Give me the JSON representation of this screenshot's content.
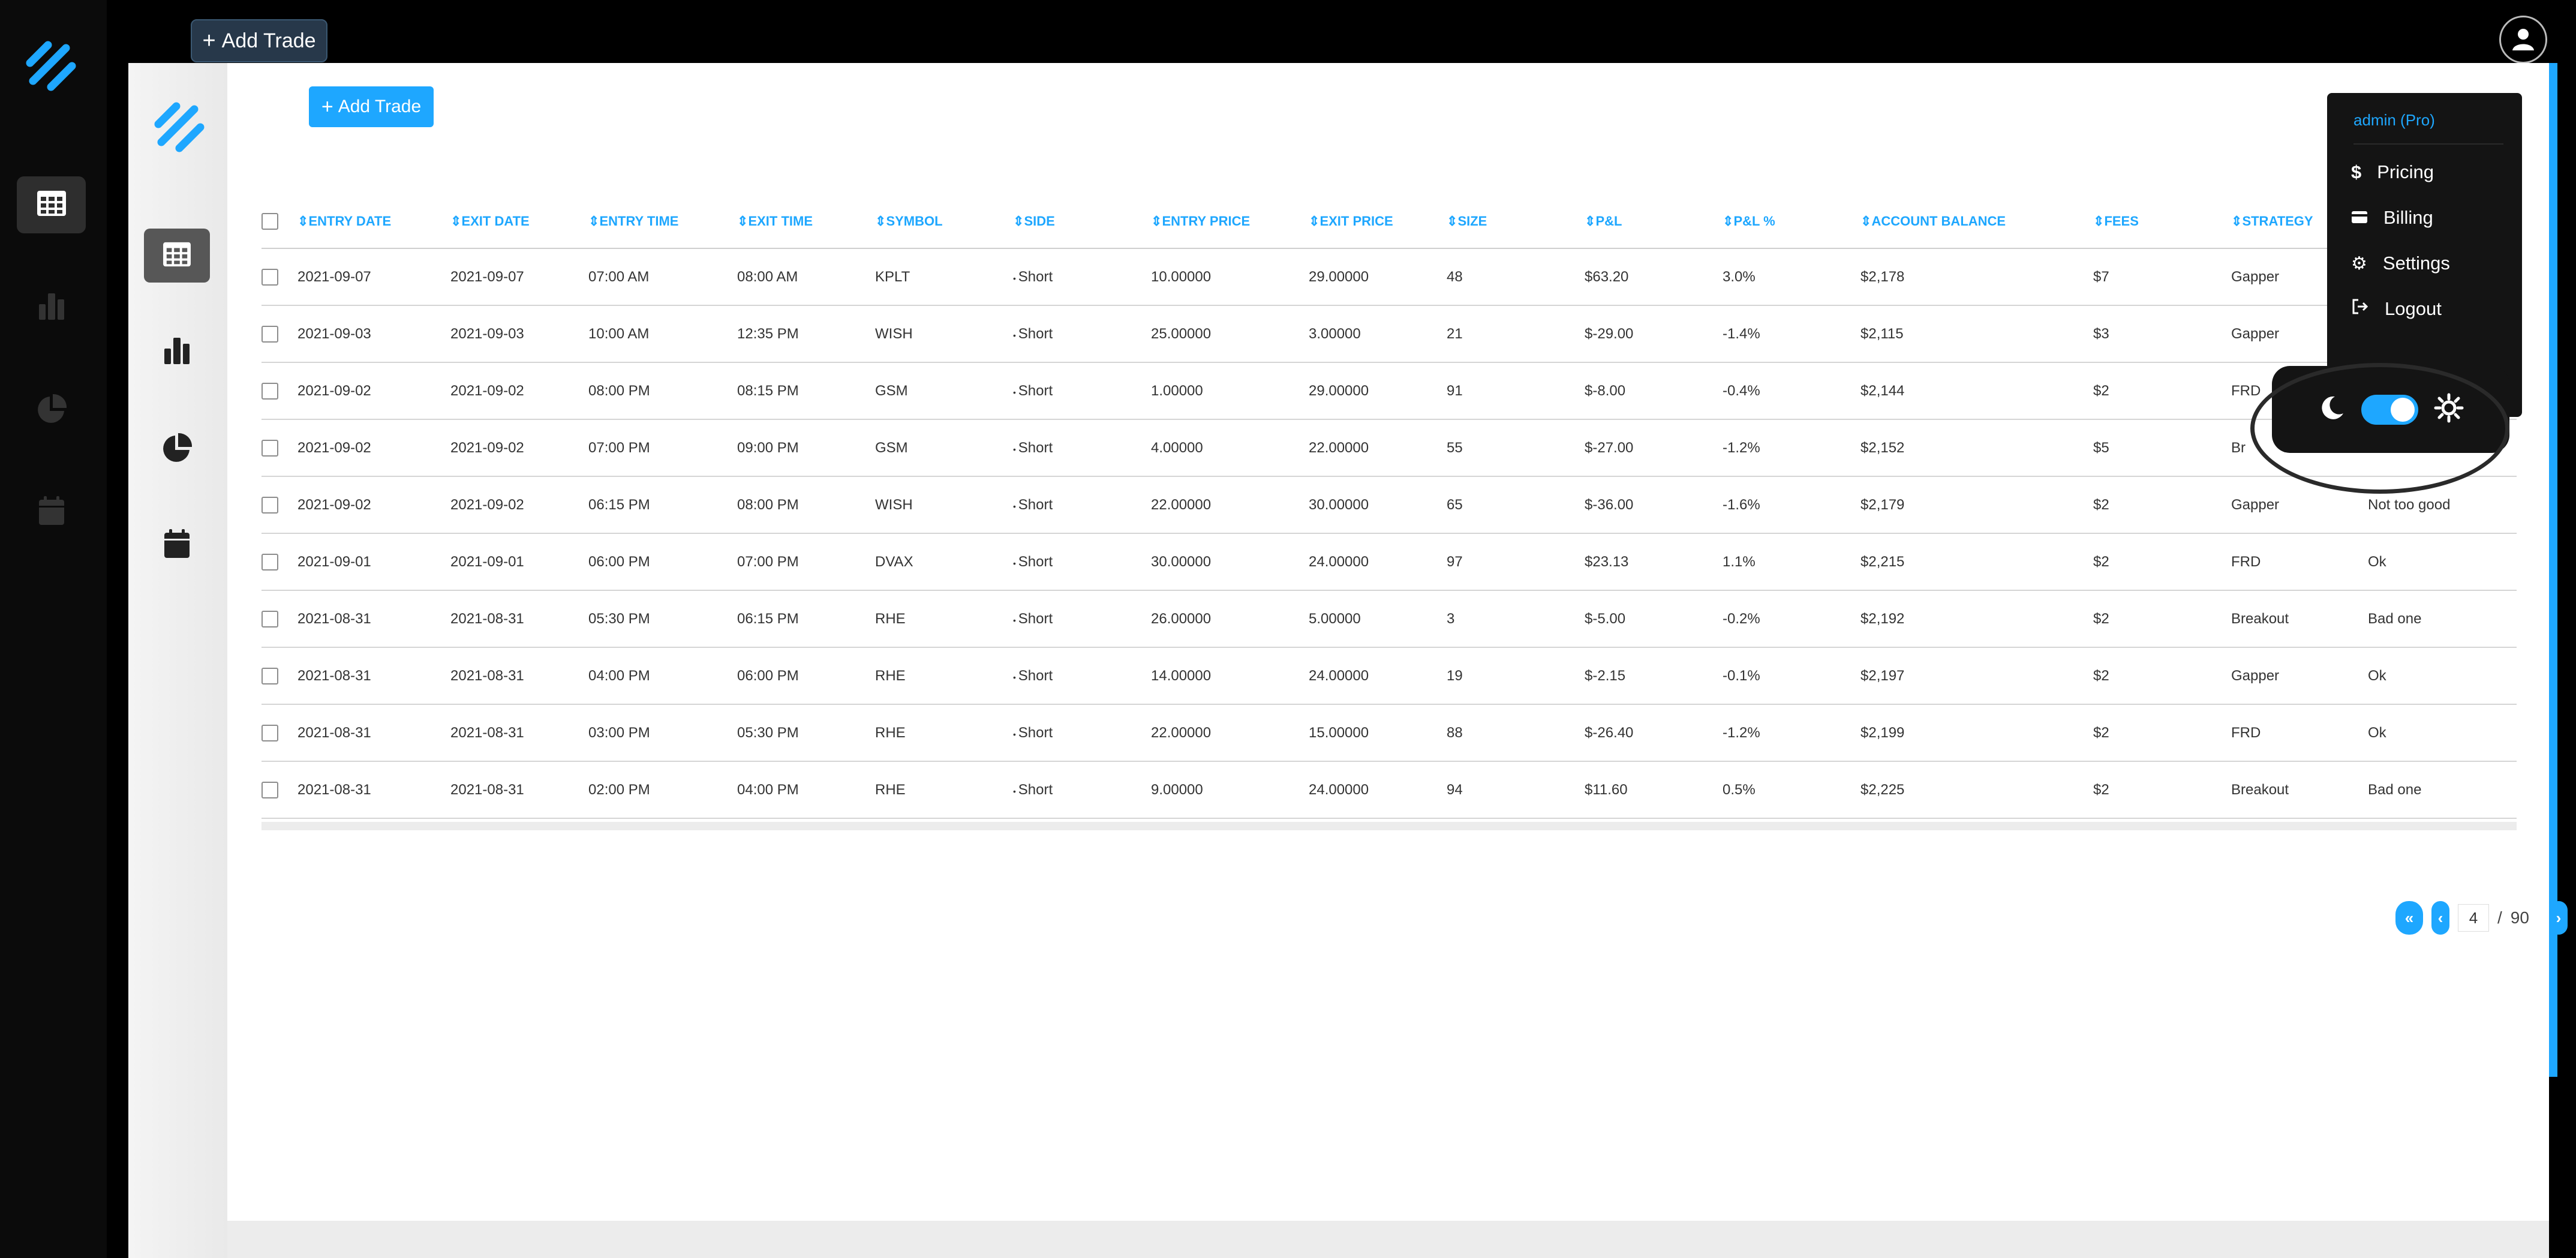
{
  "topbar": {
    "add_trade_label": "Add Trade",
    "add_trade_icon": "plus"
  },
  "outer_sidebar": {
    "icons": [
      "table-icon",
      "bar-chart-icon",
      "pie-chart-icon",
      "calendar-icon"
    ]
  },
  "inner_sidebar": {
    "icons": [
      "table-icon",
      "bar-chart-icon",
      "pie-chart-icon",
      "calendar-icon"
    ]
  },
  "main": {
    "add_trade_label": "Add Trade",
    "add_trade_icon": "plus"
  },
  "table": {
    "columns": [
      "ENTRY DATE",
      "EXIT DATE",
      "ENTRY TIME",
      "EXIT TIME",
      "SYMBOL",
      "SIDE",
      "ENTRY PRICE",
      "EXIT PRICE",
      "SIZE",
      "P&L",
      "P&L %",
      "ACCOUNT BALANCE",
      "FEES",
      "STRATEGY",
      ""
    ],
    "rows": [
      {
        "entry_date": "2021-09-07",
        "exit_date": "2021-09-07",
        "entry_time": "07:00 AM",
        "exit_time": "08:00 AM",
        "symbol": "KPLT",
        "side": "Short",
        "entry_price": "10.00000",
        "exit_price": "29.00000",
        "size": "48",
        "pnl": "$63.20",
        "pnl_sign": "pos",
        "pnl_pct": "3.0%",
        "balance": "$2,178",
        "fees": "$7",
        "strategy": "Gapper",
        "note": ""
      },
      {
        "entry_date": "2021-09-03",
        "exit_date": "2021-09-03",
        "entry_time": "10:00 AM",
        "exit_time": "12:35 PM",
        "symbol": "WISH",
        "side": "Short",
        "entry_price": "25.00000",
        "exit_price": "3.00000",
        "size": "21",
        "pnl": "$-29.00",
        "pnl_sign": "neg",
        "pnl_pct": "-1.4%",
        "balance": "$2,115",
        "fees": "$3",
        "strategy": "Gapper",
        "note": ""
      },
      {
        "entry_date": "2021-09-02",
        "exit_date": "2021-09-02",
        "entry_time": "08:00 PM",
        "exit_time": "08:15 PM",
        "symbol": "GSM",
        "side": "Short",
        "entry_price": "1.00000",
        "exit_price": "29.00000",
        "size": "91",
        "pnl": "$-8.00",
        "pnl_sign": "neg",
        "pnl_pct": "-0.4%",
        "balance": "$2,144",
        "fees": "$2",
        "strategy": "FRD",
        "note": ""
      },
      {
        "entry_date": "2021-09-02",
        "exit_date": "2021-09-02",
        "entry_time": "07:00 PM",
        "exit_time": "09:00 PM",
        "symbol": "GSM",
        "side": "Short",
        "entry_price": "4.00000",
        "exit_price": "22.00000",
        "size": "55",
        "pnl": "$-27.00",
        "pnl_sign": "neg",
        "pnl_pct": "-1.2%",
        "balance": "$2,152",
        "fees": "$5",
        "strategy": "Br",
        "note": ""
      },
      {
        "entry_date": "2021-09-02",
        "exit_date": "2021-09-02",
        "entry_time": "06:15 PM",
        "exit_time": "08:00 PM",
        "symbol": "WISH",
        "side": "Short",
        "entry_price": "22.00000",
        "exit_price": "30.00000",
        "size": "65",
        "pnl": "$-36.00",
        "pnl_sign": "neg",
        "pnl_pct": "-1.6%",
        "balance": "$2,179",
        "fees": "$2",
        "strategy": "Gapper",
        "note": "Not too good"
      },
      {
        "entry_date": "2021-09-01",
        "exit_date": "2021-09-01",
        "entry_time": "06:00 PM",
        "exit_time": "07:00 PM",
        "symbol": "DVAX",
        "side": "Short",
        "entry_price": "30.00000",
        "exit_price": "24.00000",
        "size": "97",
        "pnl": "$23.13",
        "pnl_sign": "pos",
        "pnl_pct": "1.1%",
        "balance": "$2,215",
        "fees": "$2",
        "strategy": "FRD",
        "note": "Ok"
      },
      {
        "entry_date": "2021-08-31",
        "exit_date": "2021-08-31",
        "entry_time": "05:30 PM",
        "exit_time": "06:15 PM",
        "symbol": "RHE",
        "side": "Short",
        "entry_price": "26.00000",
        "exit_price": "5.00000",
        "size": "3",
        "pnl": "$-5.00",
        "pnl_sign": "neg",
        "pnl_pct": "-0.2%",
        "balance": "$2,192",
        "fees": "$2",
        "strategy": "Breakout",
        "note": "Bad one"
      },
      {
        "entry_date": "2021-08-31",
        "exit_date": "2021-08-31",
        "entry_time": "04:00 PM",
        "exit_time": "06:00 PM",
        "symbol": "RHE",
        "side": "Short",
        "entry_price": "14.00000",
        "exit_price": "24.00000",
        "size": "19",
        "pnl": "$-2.15",
        "pnl_sign": "neg",
        "pnl_pct": "-0.1%",
        "balance": "$2,197",
        "fees": "$2",
        "strategy": "Gapper",
        "note": "Ok"
      },
      {
        "entry_date": "2021-08-31",
        "exit_date": "2021-08-31",
        "entry_time": "03:00 PM",
        "exit_time": "05:30 PM",
        "symbol": "RHE",
        "side": "Short",
        "entry_price": "22.00000",
        "exit_price": "15.00000",
        "size": "88",
        "pnl": "$-26.40",
        "pnl_sign": "neg",
        "pnl_pct": "-1.2%",
        "balance": "$2,199",
        "fees": "$2",
        "strategy": "FRD",
        "note": "Ok"
      },
      {
        "entry_date": "2021-08-31",
        "exit_date": "2021-08-31",
        "entry_time": "02:00 PM",
        "exit_time": "04:00 PM",
        "symbol": "RHE",
        "side": "Short",
        "entry_price": "9.00000",
        "exit_price": "24.00000",
        "size": "94",
        "pnl": "$11.60",
        "pnl_sign": "pos",
        "pnl_pct": "0.5%",
        "balance": "$2,225",
        "fees": "$2",
        "strategy": "Breakout",
        "note": "Bad one"
      }
    ]
  },
  "pagination": {
    "current_page": "4",
    "separator": "/",
    "total_pages": "90"
  },
  "user_menu": {
    "title": "admin (Pro)",
    "items": [
      {
        "label": "Pricing",
        "icon": "dollar-icon"
      },
      {
        "label": "Billing",
        "icon": "card-icon"
      },
      {
        "label": "Settings",
        "icon": "gear-icon"
      },
      {
        "label": "Logout",
        "icon": "logout-icon"
      }
    ]
  },
  "theme": {
    "dark_mode_on": true
  },
  "colors": {
    "accent": "#1ea7ff",
    "positive": "#2ea84a",
    "negative": "#f0507a",
    "sidebar_bg": "#0b0b0b",
    "menu_bg": "#141414"
  }
}
